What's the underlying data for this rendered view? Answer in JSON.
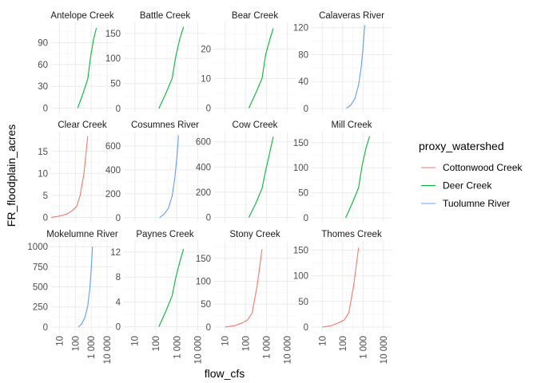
{
  "chart_data": {
    "type": "line",
    "facet_layout": "3 rows x 4 columns, free y scales, shared log10 x scale",
    "xlabel": "flow_cfs",
    "ylabel": "FR_floodplain_acres",
    "x_scale": "log10",
    "x_ticks": [
      10,
      100,
      1000,
      10000
    ],
    "x_tick_labels": [
      "10",
      "100",
      "1 000",
      "10 000"
    ],
    "xlim": [
      3,
      25000
    ],
    "grid": true,
    "legend": {
      "title": "proxy_watershed",
      "placement": "right",
      "entries": [
        {
          "name": "Cottonwood Creek",
          "color": "#F8766D"
        },
        {
          "name": "Deer Creek",
          "color": "#00BA38"
        },
        {
          "name": "Tuolumne River",
          "color": "#619CFF"
        }
      ]
    },
    "panels": [
      {
        "title": "Antelope Creek",
        "proxy": "Deer Creek",
        "yticks": [
          0,
          30,
          60,
          90
        ],
        "ylim": [
          -6,
          118
        ],
        "x": [
          140,
          300,
          600,
          900,
          1400,
          2100
        ],
        "y": [
          0,
          20,
          40,
          70,
          95,
          110
        ]
      },
      {
        "title": "Battle Creek",
        "proxy": "Deer Creek",
        "yticks": [
          0,
          50,
          100,
          150
        ],
        "ylim": [
          -8,
          172
        ],
        "x": [
          140,
          300,
          600,
          900,
          1400,
          2100
        ],
        "y": [
          0,
          30,
          60,
          105,
          140,
          163
        ]
      },
      {
        "title": "Bear Creek",
        "proxy": "Deer Creek",
        "yticks": [
          0,
          10,
          20
        ],
        "ylim": [
          -1.5,
          29
        ],
        "x": [
          140,
          300,
          600,
          900,
          1400,
          2100
        ],
        "y": [
          0,
          5,
          10,
          18,
          23,
          27
        ]
      },
      {
        "title": "Calaveras River",
        "proxy": "Tuolumne River",
        "yticks": [
          0,
          40,
          80,
          120
        ],
        "ylim": [
          -6,
          128
        ],
        "x": [
          150,
          250,
          400,
          600,
          800,
          1000,
          1200
        ],
        "y": [
          0,
          5,
          15,
          35,
          60,
          90,
          124
        ]
      },
      {
        "title": "Clear Creek",
        "proxy": "Cottonwood Creek",
        "yticks": [
          0,
          5,
          10,
          15
        ],
        "ylim": [
          -1,
          19.5
        ],
        "x": [
          3,
          10,
          30,
          60,
          120,
          200,
          350,
          600
        ],
        "y": [
          0,
          0.3,
          0.8,
          1.5,
          2.5,
          5,
          10,
          18.5
        ]
      },
      {
        "title": "Cosumnes River",
        "proxy": "Tuolumne River",
        "yticks": [
          0,
          200,
          400,
          600
        ],
        "ylim": [
          -35,
          720
        ],
        "x": [
          150,
          250,
          400,
          600,
          800,
          1000,
          1200
        ],
        "y": [
          0,
          30,
          80,
          180,
          330,
          500,
          690
        ]
      },
      {
        "title": "Cow Creek",
        "proxy": "Deer Creek",
        "yticks": [
          0,
          200,
          400,
          600
        ],
        "ylim": [
          -35,
          680
        ],
        "x": [
          140,
          300,
          600,
          900,
          1400,
          2100
        ],
        "y": [
          0,
          110,
          230,
          370,
          510,
          640
        ]
      },
      {
        "title": "Mill Creek",
        "proxy": "Deer Creek",
        "yticks": [
          0,
          50,
          100,
          150
        ],
        "ylim": [
          -8,
          172
        ],
        "x": [
          140,
          300,
          600,
          900,
          1400,
          2100
        ],
        "y": [
          0,
          30,
          60,
          105,
          140,
          163
        ]
      },
      {
        "title": "Mokelumne River",
        "proxy": "Tuolumne River",
        "yticks": [
          0,
          250,
          500,
          750,
          1000
        ],
        "ylim": [
          -50,
          1070
        ],
        "x": [
          150,
          250,
          400,
          600,
          800,
          1000,
          1200
        ],
        "y": [
          0,
          40,
          120,
          260,
          470,
          720,
          1000
        ]
      },
      {
        "title": "Paynes Creek",
        "proxy": "Deer Creek",
        "yticks": [
          0,
          4,
          8,
          12
        ],
        "ylim": [
          -0.7,
          13.8
        ],
        "x": [
          140,
          300,
          600,
          900,
          1400,
          2100
        ],
        "y": [
          0,
          2.5,
          5,
          8,
          10.5,
          12.5
        ]
      },
      {
        "title": "Stony Creek",
        "proxy": "Cottonwood Creek",
        "yticks": [
          0,
          50,
          100,
          150
        ],
        "ylim": [
          -9,
          188
        ],
        "x": [
          10,
          30,
          60,
          120,
          200,
          350,
          600
        ],
        "y": [
          0,
          3,
          8,
          15,
          30,
          90,
          170
        ]
      },
      {
        "title": "Thomes Creek",
        "proxy": "Cottonwood Creek",
        "yticks": [
          0,
          50,
          100,
          150
        ],
        "ylim": [
          -8,
          168
        ],
        "x": [
          10,
          30,
          60,
          120,
          200,
          350,
          600
        ],
        "y": [
          0,
          3,
          8,
          14,
          28,
          82,
          155
        ]
      }
    ]
  }
}
